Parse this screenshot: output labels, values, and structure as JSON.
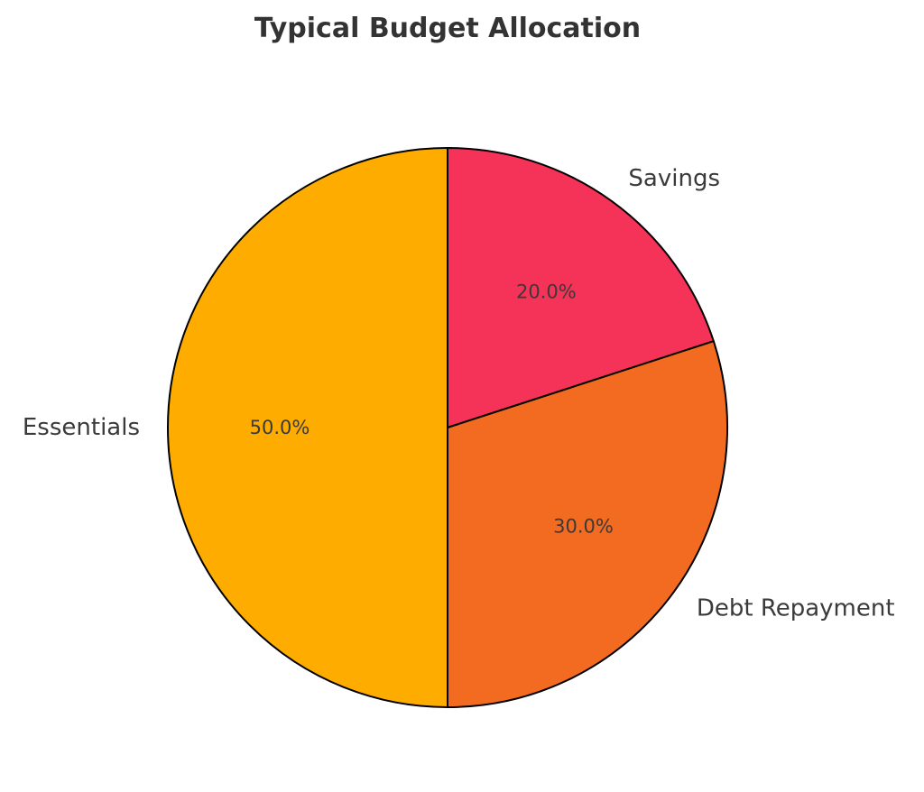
{
  "chart_data": {
    "type": "pie",
    "title": "Typical Budget Allocation",
    "start_angle_deg": 90,
    "direction": "clockwise",
    "slices": [
      {
        "label": "Savings",
        "value": 20.0,
        "pct_label": "20.0%",
        "color": "#F53257"
      },
      {
        "label": "Debt Repayment",
        "value": 30.0,
        "pct_label": "30.0%",
        "color": "#F26B21"
      },
      {
        "label": "Essentials",
        "value": 50.0,
        "pct_label": "50.0%",
        "color": "#FFAC00"
      }
    ],
    "edge_color": "#000000"
  }
}
